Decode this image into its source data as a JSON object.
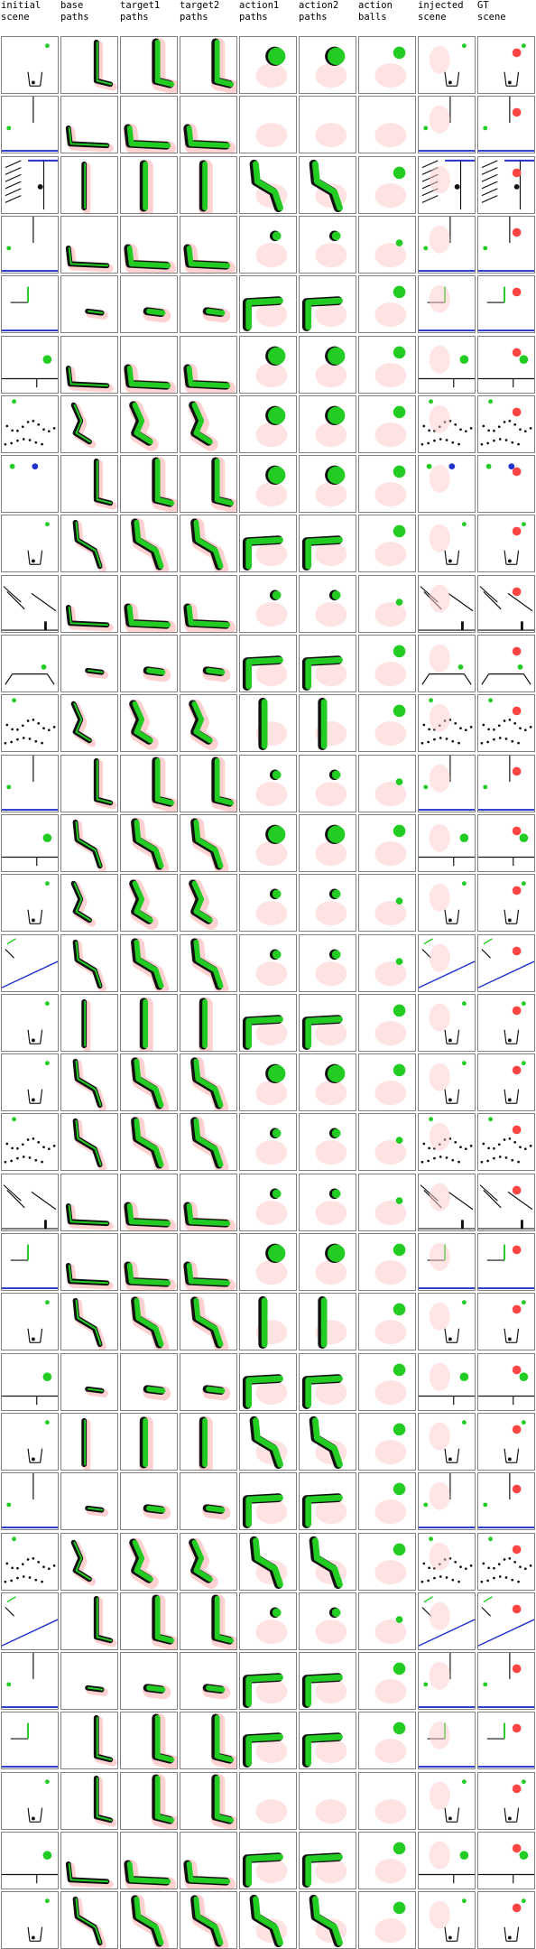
{
  "columns": [
    {
      "id": "initial_scene",
      "label": "initial\nscene"
    },
    {
      "id": "base_paths",
      "label": "base\npaths"
    },
    {
      "id": "target1_paths",
      "label": "target1\npaths"
    },
    {
      "id": "target2_paths",
      "label": "target2\npaths"
    },
    {
      "id": "action1_paths",
      "label": "action1\npaths"
    },
    {
      "id": "action2_paths",
      "label": "action2\npaths"
    },
    {
      "id": "action_balls",
      "label": "action\nballs"
    },
    {
      "id": "injected_scene",
      "label": "injected\nscene"
    },
    {
      "id": "gt_scene",
      "label": "GT\nscene"
    }
  ],
  "row_count": 32,
  "colors": {
    "border": "#7f7f7f",
    "green": "#22cc22",
    "red": "#ff4444",
    "pink": "#ffcccc",
    "blue": "#2233cc",
    "black": "#111111"
  },
  "rows": [
    {
      "scene": "cup-ball",
      "shape": "L",
      "act": "blob"
    },
    {
      "scene": "corner-blue",
      "shape": "hook",
      "act": "none"
    },
    {
      "scene": "ramps",
      "shape": "vbar",
      "act": "diag"
    },
    {
      "scene": "corner-blue",
      "shape": "hook",
      "act": "small"
    },
    {
      "scene": "bracket",
      "shape": "blob",
      "act": "L"
    },
    {
      "scene": "ledge",
      "shape": "hook",
      "act": "blob"
    },
    {
      "scene": "dots",
      "shape": "zig",
      "act": "blob"
    },
    {
      "scene": "two-balls",
      "shape": "L",
      "act": "blob"
    },
    {
      "scene": "cup-ball",
      "shape": "diag",
      "act": "L"
    },
    {
      "scene": "slants",
      "shape": "hook",
      "act": "small"
    },
    {
      "scene": "basin",
      "shape": "blob",
      "act": "L"
    },
    {
      "scene": "dots",
      "shape": "zig",
      "act": "vbar"
    },
    {
      "scene": "corner-blue",
      "shape": "L",
      "act": "small"
    },
    {
      "scene": "ledge",
      "shape": "diag",
      "act": "blob"
    },
    {
      "scene": "cup-ball",
      "shape": "zig",
      "act": "small"
    },
    {
      "scene": "wedge",
      "shape": "diag",
      "act": "small"
    },
    {
      "scene": "cup-ball",
      "shape": "vbar",
      "act": "L"
    },
    {
      "scene": "cup-ball",
      "shape": "diag",
      "act": "blob"
    },
    {
      "scene": "dots",
      "shape": "diag",
      "act": "small"
    },
    {
      "scene": "slants",
      "shape": "hook",
      "act": "small"
    },
    {
      "scene": "bracket",
      "shape": "hook",
      "act": "blob"
    },
    {
      "scene": "cup-ball",
      "shape": "diag",
      "act": "vbar"
    },
    {
      "scene": "ledge",
      "shape": "blob",
      "act": "L"
    },
    {
      "scene": "cup-ball",
      "shape": "vbar",
      "act": "diag"
    },
    {
      "scene": "corner-blue",
      "shape": "blob",
      "act": "L"
    },
    {
      "scene": "dots",
      "shape": "zig",
      "act": "diag"
    },
    {
      "scene": "wedge",
      "shape": "L",
      "act": "small"
    },
    {
      "scene": "corner-blue",
      "shape": "blob",
      "act": "L"
    },
    {
      "scene": "bracket",
      "shape": "L",
      "act": "L"
    },
    {
      "scene": "cup-ball",
      "shape": "L",
      "act": "none"
    },
    {
      "scene": "ledge",
      "shape": "hook",
      "act": "L"
    },
    {
      "scene": "cup-ball",
      "shape": "diag",
      "act": "diag"
    }
  ]
}
